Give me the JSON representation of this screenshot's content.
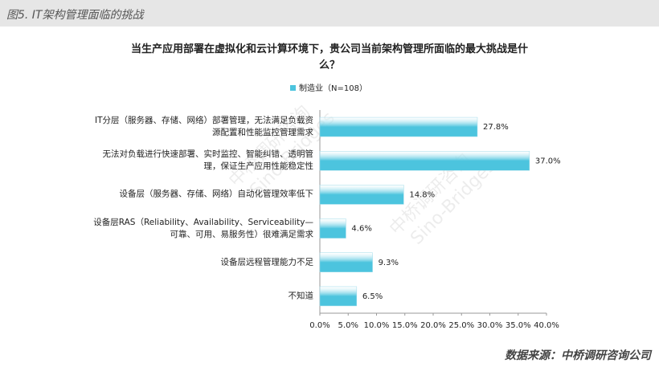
{
  "header": {
    "title": "图5. IT架构管理面临的挑战"
  },
  "chart_data": {
    "type": "hbar",
    "title": "当生产应用部署在虚拟化和云计算环境下，贵公司当前架构管理所面临的最大挑战是什么？",
    "series": [
      {
        "name": "制造业（N=108）",
        "color": "#4cc4de",
        "values": [
          27.8,
          37.0,
          14.8,
          4.6,
          9.3,
          6.5
        ],
        "value_labels": [
          "27.8%",
          "37.0%",
          "14.8%",
          "4.6%",
          "9.3%",
          "6.5%"
        ]
      }
    ],
    "categories": [
      "IT分层（服务器、存储、网络）部署管理，无法满足负载资源配置和性能监控管理需求",
      "无法对负载进行快速部署、实时监控、智能纠错、透明管理，保证生产应用性能稳定性",
      "设备层（服务器、存储、网络）自动化管理效率低下",
      "设备层RAS（Reliability、Availability、Serviceability—可靠、可用、易服务性）很难满足需求",
      "设备层远程管理能力不足",
      "不知道"
    ],
    "xlim": [
      0,
      40
    ],
    "xticks": [
      {
        "value": 0,
        "label": "0.0%"
      },
      {
        "value": 5,
        "label": "5.0%"
      },
      {
        "value": 10,
        "label": "10.0%"
      },
      {
        "value": 15,
        "label": "15.0%"
      },
      {
        "value": 20,
        "label": "20.0%"
      },
      {
        "value": 25,
        "label": "25.0%"
      },
      {
        "value": 30,
        "label": "30.0%"
      },
      {
        "value": 35,
        "label": "35.0%"
      },
      {
        "value": 40,
        "label": "40.0%"
      }
    ],
    "watermark": [
      "中桥调研咨询",
      "Sino-Bridges"
    ]
  },
  "footer": {
    "source": "数据来源：中桥调研咨询公司"
  }
}
